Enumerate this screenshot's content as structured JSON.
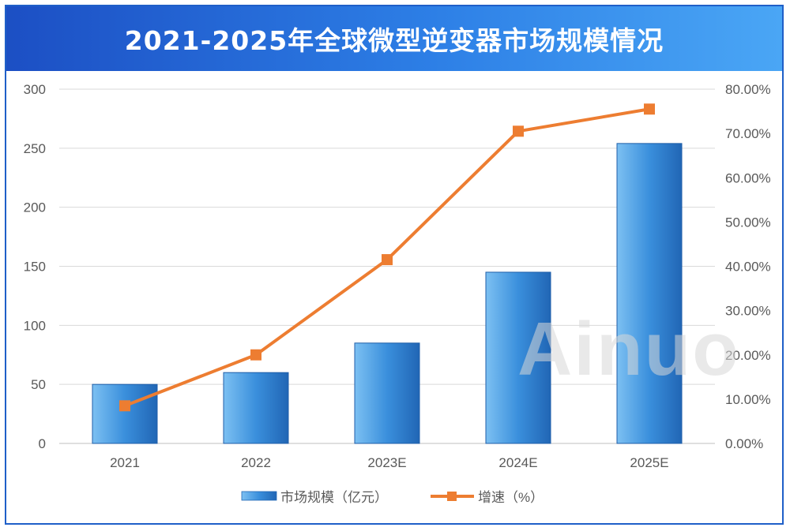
{
  "chart_data": {
    "type": "bar",
    "title": "2021-2025年全球微型逆变器市场规模情况",
    "categories": [
      "2021",
      "2022",
      "2023E",
      "2024E",
      "2025E"
    ],
    "series": [
      {
        "name": "市场规模（亿元）",
        "type": "bar",
        "axis": "left",
        "values": [
          50,
          60,
          85,
          145,
          254
        ],
        "color": "#3a8fdc"
      },
      {
        "name": "增速（%）",
        "type": "line",
        "axis": "right",
        "values": [
          8.5,
          20.0,
          41.5,
          70.5,
          75.5
        ],
        "color": "#ed7d31"
      }
    ],
    "left_axis": {
      "min": 0,
      "max": 300,
      "ticks": [
        "0",
        "50",
        "100",
        "150",
        "200",
        "250",
        "300"
      ]
    },
    "right_axis": {
      "min": 0,
      "max": 80,
      "ticks": [
        "0.00%",
        "10.00%",
        "20.00%",
        "30.00%",
        "40.00%",
        "50.00%",
        "60.00%",
        "70.00%",
        "80.00%"
      ]
    },
    "grid": true,
    "legend_position": "bottom",
    "legend": {
      "bar_label": "市场规模（亿元）",
      "line_label": "增速（%）"
    }
  },
  "watermark": "Ainuo"
}
